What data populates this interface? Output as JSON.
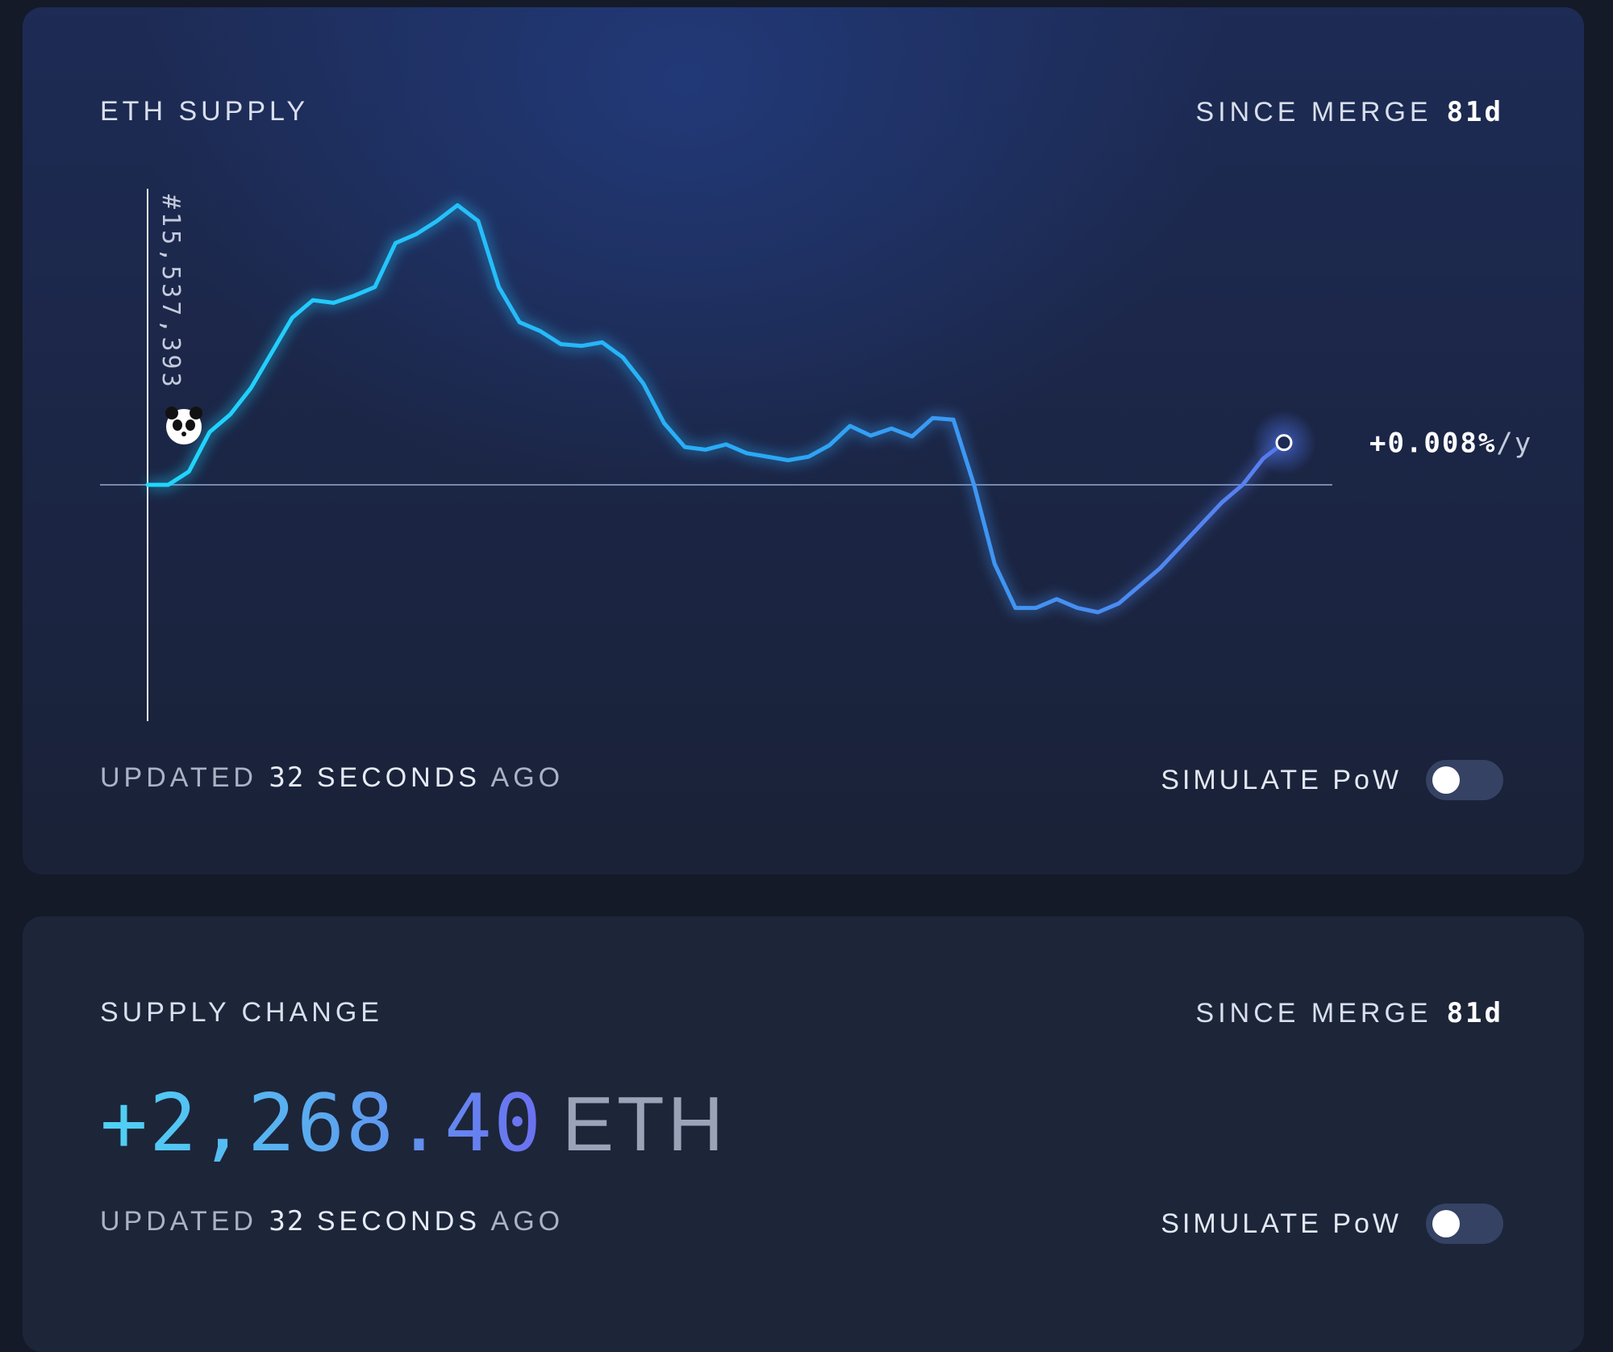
{
  "supply_card": {
    "title": "ETH SUPPLY",
    "since_label": "SINCE MERGE",
    "since_value": "81d",
    "block_label": "#15,537,393",
    "rate_value": "+0.008%",
    "rate_unit": "/y",
    "updated_prefix": "UPDATED",
    "updated_number": "32",
    "updated_word": "SECONDS",
    "updated_suffix": "AGO",
    "simulate_label": "SIMULATE PoW",
    "simulate_on": false
  },
  "change_card": {
    "title": "SUPPLY CHANGE",
    "since_label": "SINCE MERGE",
    "since_value": "81d",
    "amount": "+2,268.40",
    "unit": "ETH",
    "updated_prefix": "UPDATED",
    "updated_number": "32",
    "updated_word": "SECONDS",
    "updated_suffix": "AGO",
    "simulate_label": "SIMULATE PoW",
    "simulate_on": false
  },
  "colors": {
    "line_start": "#1fd8ff",
    "line_mid": "#2aa8f5",
    "line_end": "#5b7df0",
    "baseline": "#8fa3c8"
  },
  "chart_data": {
    "type": "line",
    "title": "ETH SUPPLY",
    "series": [
      {
        "values": [
          0,
          0,
          15,
          60,
          80,
          110,
          150,
          190,
          210,
          207,
          215,
          225,
          275,
          285,
          300,
          318,
          300,
          225,
          185,
          175,
          160,
          158,
          162,
          145,
          115,
          70,
          43,
          40,
          46,
          36,
          32,
          28,
          32,
          45,
          67,
          56,
          64,
          55,
          76,
          74,
          0,
          -90,
          -140,
          -140,
          -130,
          -140,
          -145,
          -135,
          -115,
          -95,
          -70,
          -45,
          -20,
          0,
          30,
          48
        ]
      }
    ],
    "baseline_value": 0,
    "end_label": "+0.008%/y"
  }
}
